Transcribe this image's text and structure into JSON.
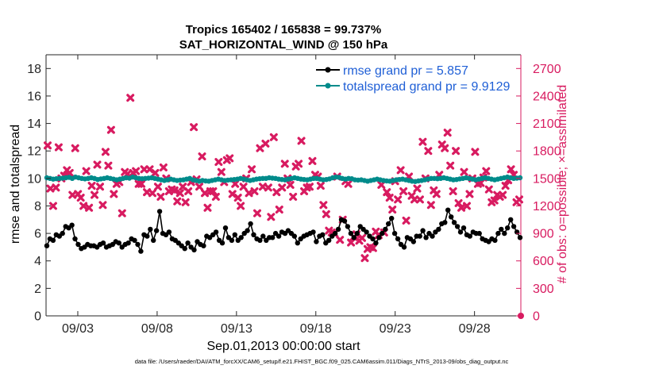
{
  "chart_data": {
    "type": "line",
    "title": "Tropics 165402 / 165838 = 99.737%",
    "subtitle": "SAT_HORIZONTAL_WIND @ 150 hPa",
    "xlabel": "Sep.01,2013 00:00:00 start",
    "ylabel_left": "rmse and totalspread",
    "ylabel_right": "# of obs: o=possible; ×=assimilated",
    "x_tick_labels": [
      "09/03",
      "09/08",
      "09/13",
      "09/18",
      "09/23",
      "09/28"
    ],
    "x_tick_positions_days": [
      2,
      7,
      12,
      17,
      22,
      27
    ],
    "xlim_days": [
      0,
      29.92
    ],
    "ylim_left": [
      0,
      19
    ],
    "yticks_left": [
      0,
      2,
      4,
      6,
      8,
      10,
      12,
      14,
      16,
      18
    ],
    "ylim_right": [
      0,
      2850
    ],
    "yticks_right": [
      0,
      300,
      600,
      900,
      1200,
      1500,
      1800,
      2100,
      2400,
      2700
    ],
    "legend": [
      "rmse grand pr = 5.857",
      "totalspread grand pr = 9.9129"
    ],
    "series": [
      {
        "name": "rmse",
        "color": "#000000",
        "axis": "left",
        "values": [
          5.1,
          5.6,
          5.5,
          5.9,
          5.8,
          6.0,
          6.5,
          6.4,
          6.6,
          5.6,
          5.2,
          4.9,
          5.0,
          5.2,
          5.1,
          5.1,
          5.0,
          5.2,
          5.3,
          5.0,
          5.1,
          5.2,
          5.4,
          5.3,
          5.0,
          5.2,
          5.3,
          5.6,
          5.5,
          5.2,
          4.7,
          5.9,
          5.8,
          6.3,
          5.5,
          6.2,
          7.6,
          6.0,
          5.9,
          6.1,
          5.6,
          5.5,
          5.3,
          5.1,
          4.9,
          5.3,
          5.0,
          4.8,
          5.4,
          5.2,
          5.1,
          5.8,
          5.7,
          5.9,
          6.1,
          5.5,
          5.3,
          6.4,
          5.7,
          5.5,
          5.9,
          5.5,
          5.7,
          6.0,
          6.2,
          6.7,
          5.9,
          5.6,
          5.5,
          5.8,
          5.5,
          5.7,
          5.7,
          6.0,
          5.8,
          6.1,
          6.0,
          6.2,
          6.0,
          5.8,
          5.3,
          5.6,
          5.8,
          5.9,
          6.0,
          6.1,
          5.4,
          5.8,
          5.9,
          5.3,
          5.5,
          5.8,
          6.0,
          6.3,
          7.0,
          6.9,
          6.5,
          6.0,
          5.7,
          6.0,
          6.5,
          6.3,
          6.1,
          5.8,
          5.6,
          5.3,
          5.7,
          6.0,
          6.3,
          6.7,
          7.1,
          6.0,
          5.6,
          5.2,
          5.0,
          5.7,
          5.6,
          5.4,
          5.8,
          5.8,
          6.2,
          5.7,
          6.0,
          5.8,
          6.1,
          6.3,
          6.7,
          6.8,
          7.7,
          7.2,
          6.8,
          6.5,
          6.1,
          6.4,
          5.9,
          5.8,
          6.1,
          6.0,
          6.0,
          5.6,
          5.5,
          5.4,
          5.6,
          5.5,
          6.0,
          6.3,
          6.0,
          6.4,
          7.0,
          6.5,
          6.1,
          5.7
        ]
      },
      {
        "name": "totalspread",
        "color": "#008b8b",
        "axis": "left",
        "values": [
          10.05,
          10.0,
          9.95,
          9.98,
          10.0,
          10.02,
          10.05,
          10.08,
          10.0,
          10.1,
          10.05,
          10.0,
          9.97,
          10.0,
          10.05,
          10.0,
          9.92,
          9.97,
          10.0,
          10.05,
          10.0,
          9.95,
          9.9,
          9.95,
          10.0,
          10.05,
          10.02,
          10.1,
          10.05,
          10.0,
          9.98,
          10.0,
          10.02,
          10.05,
          10.0,
          9.95,
          9.9,
          9.85,
          9.9,
          9.95,
          9.9,
          9.85,
          9.88,
          9.9,
          9.95,
          10.0,
          9.9,
          9.85,
          9.8,
          9.85,
          9.82,
          9.8,
          9.85,
          9.9,
          9.95,
          9.9,
          9.85,
          9.88,
          9.9,
          9.92,
          9.95,
          10.0,
          9.95,
          9.9,
          9.85,
          9.9,
          9.95,
          9.98,
          10.0,
          10.0,
          10.05,
          10.02,
          10.0,
          9.95,
          9.92,
          9.9,
          9.95,
          10.0,
          10.05,
          10.0,
          9.95,
          9.92,
          9.9,
          9.95,
          10.0,
          10.0,
          9.95,
          9.9,
          9.92,
          9.97,
          10.05,
          10.1,
          10.08,
          10.0,
          9.95,
          10.0,
          9.98,
          9.9,
          9.88,
          9.9,
          9.85,
          9.8,
          9.85,
          9.9,
          9.95,
          9.9,
          9.85,
          9.82,
          9.8,
          9.85,
          9.9,
          9.92,
          9.95,
          9.9,
          9.85,
          9.8,
          9.78,
          9.82,
          9.85,
          9.9,
          9.95,
          10.0,
          10.0,
          9.98,
          10.0,
          10.05,
          10.0,
          9.95,
          9.9,
          9.92,
          9.97,
          10.0,
          10.05,
          10.0,
          9.95,
          9.9,
          9.95,
          10.0,
          10.05,
          10.0,
          9.95,
          9.9,
          9.95,
          10.0,
          10.05,
          10.1,
          10.05,
          10.0,
          10.02,
          10.05
        ]
      },
      {
        "name": "# of obs assimilated",
        "color": "#d81b60",
        "axis": "right",
        "marker": "x",
        "values": [
          1860,
          1390,
          1200,
          1400,
          1840,
          1500,
          1530,
          1590,
          1560,
          1320,
          1830,
          1330,
          1290,
          1200,
          1580,
          1180,
          1420,
          1320,
          1650,
          1410,
          1210,
          1790,
          1640,
          2030,
          1330,
          1440,
          1460,
          1120,
          1570,
          1550,
          2380,
          1560,
          1580,
          1440,
          1440,
          1600,
          1350,
          1600,
          1340,
          1560,
          1410,
          1300,
          1620,
          1500,
          1360,
          1380,
          1370,
          1250,
          1340,
          1410,
          1240,
          1360,
          1460,
          2060,
          1490,
          1410,
          1740,
          1340,
          1180,
          1360,
          1360,
          1300,
          1680,
          1570,
          1460,
          1700,
          1720,
          1330,
          1440,
          1290,
          1200,
          1410,
          1500,
          1340,
          1600,
          1360,
          1120,
          1830,
          1410,
          1880,
          1400,
          1080,
          1950,
          1350,
          1160,
          1400,
          1660,
          1500,
          1430,
          1300,
          1630,
          1660,
          1910,
          1360,
          1400,
          1410,
          1690,
          1540,
          1520,
          1420,
          1210,
          1110,
          930,
          910,
          900,
          1520,
          830,
          1050,
          1470,
          1440,
          800,
          860,
          890,
          820,
          850,
          630,
          730,
          750,
          740,
          920,
          880,
          1430,
          910,
          1350,
          1290,
          1160,
          1470,
          1270,
          1590,
          1360,
          1040,
          1520,
          1310,
          1270,
          1390,
          1270,
          1900,
          1500,
          1800,
          1210,
          1370,
          1330,
          1540,
          1870,
          1830,
          2000,
          1640,
          1360,
          1800,
          1230,
          1180,
          1570,
          1200,
          1330,
          1500,
          1790,
          1440,
          1450,
          1510,
          1580,
          1380,
          1240,
          1260,
          1320,
          1300,
          1320,
          1420,
          1480,
          1600,
          1540,
          1240,
          1270
        ]
      },
      {
        "name": "# of obs possible",
        "color": "#d81b60",
        "axis": "right",
        "marker": "o",
        "values": [
          0
        ]
      }
    ]
  }
}
